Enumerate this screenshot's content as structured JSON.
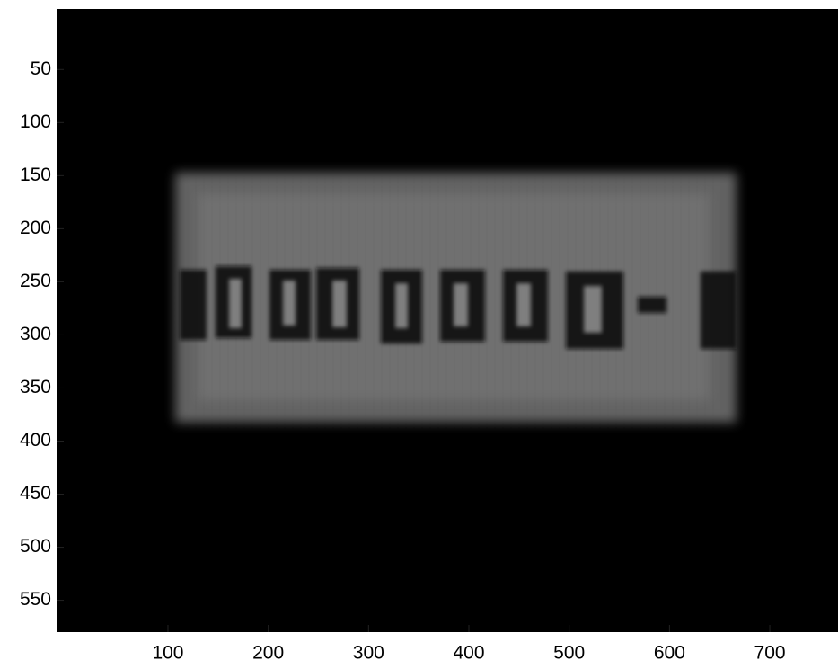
{
  "chart_data": {
    "type": "image",
    "xlim": [
      -11,
      768
    ],
    "xticks": [
      100,
      200,
      300,
      400,
      500,
      600,
      700
    ],
    "ylim": [
      -7,
      580
    ],
    "yticks": [
      50,
      100,
      150,
      200,
      250,
      300,
      350,
      400,
      450,
      500,
      550
    ],
    "y_reversed": true,
    "colormap": "gray"
  }
}
